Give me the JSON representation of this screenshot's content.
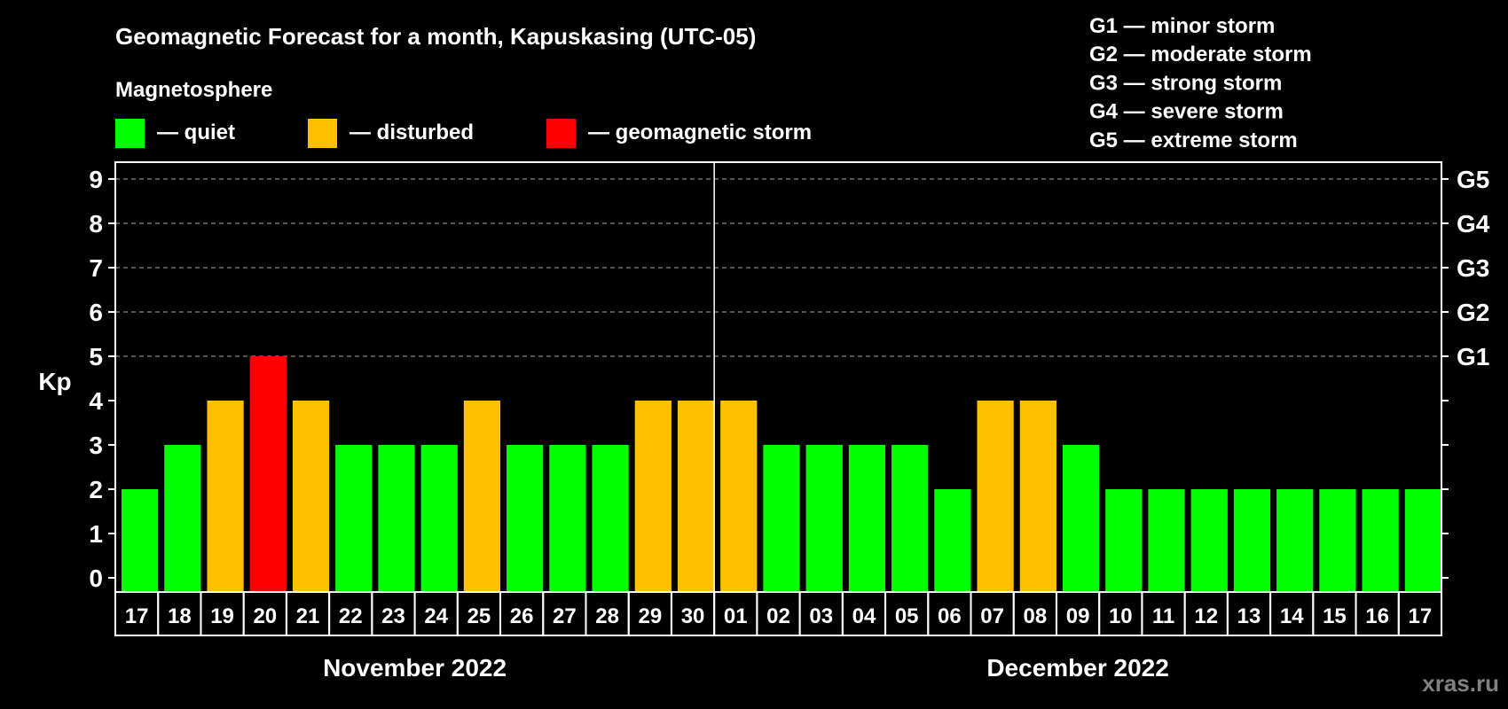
{
  "chart_data": {
    "type": "bar",
    "title": "Geomagnetic Forecast for a month, Kapuskasing (UTC-05)",
    "ylabel": "Kp",
    "ylim": [
      0,
      9
    ],
    "yticks": [
      "0",
      "1",
      "2",
      "3",
      "4",
      "5",
      "6",
      "7",
      "8",
      "9"
    ],
    "grid": true,
    "g_scale_ticks": [
      {
        "kp": 5,
        "label": "G1"
      },
      {
        "kp": 6,
        "label": "G2"
      },
      {
        "kp": 7,
        "label": "G3"
      },
      {
        "kp": 8,
        "label": "G4"
      },
      {
        "kp": 9,
        "label": "G5"
      }
    ],
    "categories": [
      "17",
      "18",
      "19",
      "20",
      "21",
      "22",
      "23",
      "24",
      "25",
      "26",
      "27",
      "28",
      "29",
      "30",
      "01",
      "02",
      "03",
      "04",
      "05",
      "06",
      "07",
      "08",
      "09",
      "10",
      "11",
      "12",
      "13",
      "14",
      "15",
      "16",
      "17"
    ],
    "values": [
      2,
      3,
      4,
      5,
      4,
      3,
      3,
      3,
      4,
      3,
      3,
      3,
      4,
      4,
      4,
      3,
      3,
      3,
      3,
      2,
      4,
      4,
      3,
      2,
      2,
      2,
      2,
      2,
      2,
      2,
      2
    ],
    "months": [
      {
        "label": "November 2022",
        "start_index": 0,
        "count": 14
      },
      {
        "label": "December 2022",
        "start_index": 14,
        "count": 17
      }
    ]
  },
  "legend": {
    "heading": "Magnetosphere",
    "items": [
      {
        "label": "— quiet",
        "color": "#00ff00"
      },
      {
        "label": "— disturbed",
        "color": "#ffc000"
      },
      {
        "label": "— geomagnetic storm",
        "color": "#ff0000"
      }
    ]
  },
  "storm_levels": [
    "G1 — minor storm",
    "G2 — moderate storm",
    "G3 — strong storm",
    "G4 — severe storm",
    "G5 — extreme storm"
  ],
  "watermark": "xras.ru"
}
